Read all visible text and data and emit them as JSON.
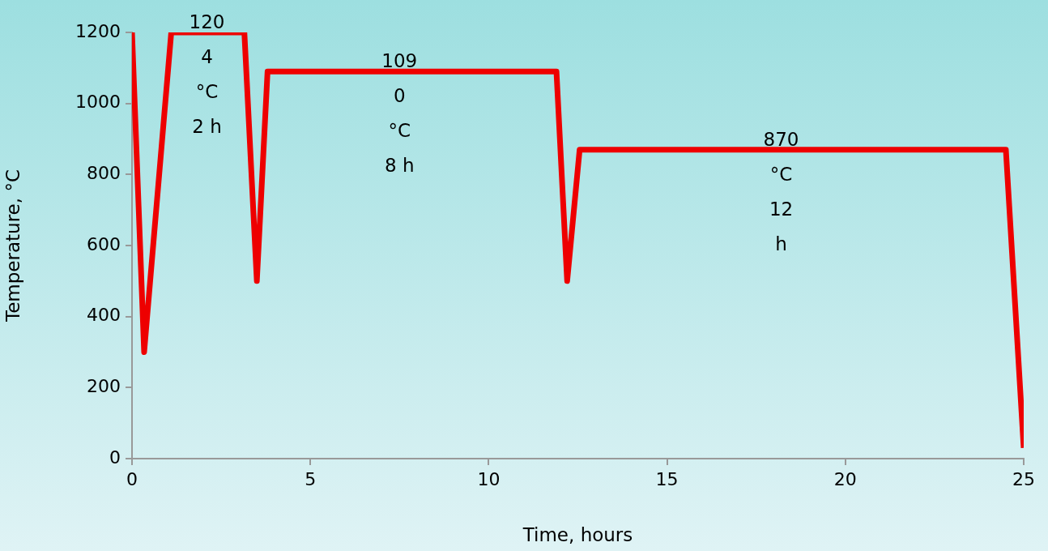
{
  "chart_data": {
    "type": "line",
    "xlabel": "Time, hours",
    "ylabel": "Temperature, °C",
    "series": [
      {
        "color": "#ee0000",
        "x": [
          0,
          0.34,
          1.1,
          3.15,
          3.5,
          3.8,
          11.9,
          12.2,
          12.55,
          24.5,
          25
        ],
        "values": [
          1200,
          300,
          1200,
          1200,
          500,
          1090,
          1090,
          500,
          870,
          870,
          30
        ]
      }
    ],
    "xlim": [
      0,
      25
    ],
    "xticks": [
      0,
      5,
      10,
      15,
      20,
      25
    ],
    "ylim": [
      0,
      1200
    ],
    "yticks": [
      0,
      200,
      400,
      600,
      800,
      1000,
      1200
    ],
    "grid": false,
    "legend": false,
    "marker": "none",
    "line_style": "solid",
    "annotations": [
      {
        "text": "120\n4\n°C\n2 h",
        "x": 2.1,
        "y": 1200
      },
      {
        "text": "109\n0\n°C\n8 h",
        "x": 7.5,
        "y": 1090
      },
      {
        "text": "870\n°C\n12\nh",
        "x": 18.2,
        "y": 870
      }
    ]
  }
}
